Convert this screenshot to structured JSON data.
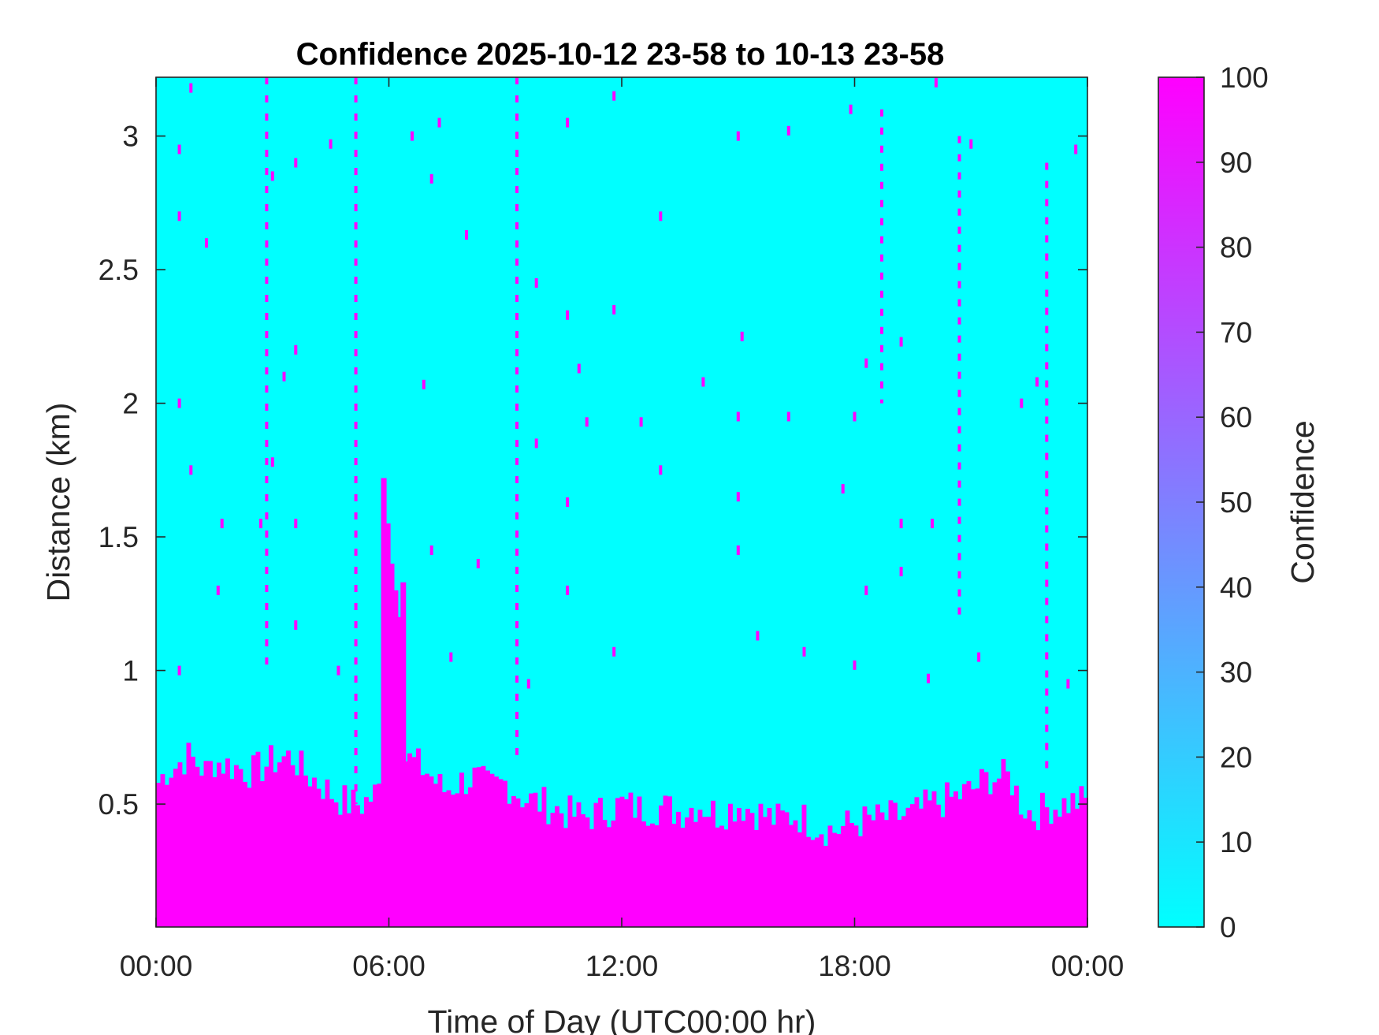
{
  "chart_data": {
    "type": "heatmap",
    "title": "Confidence 2025-10-12 23-58 to 10-13 23-58",
    "xlabel": "Time of Day (UTC00:00 hr)",
    "ylabel": "Distance (km)",
    "colorbar_label": "Confidence",
    "x_unit": "hours of day (UTC)",
    "xlim": [
      0,
      24
    ],
    "ylim": [
      0.04,
      3.22
    ],
    "x_ticks": [
      0,
      6,
      12,
      18,
      24
    ],
    "x_tick_labels": [
      "00:00",
      "06:00",
      "12:00",
      "18:00",
      "00:00"
    ],
    "y_ticks": [
      0.5,
      1,
      1.5,
      2,
      2.5,
      3
    ],
    "y_tick_labels": [
      "0.5",
      "1",
      "1.5",
      "2",
      "2.5",
      "3"
    ],
    "clim": [
      0,
      100
    ],
    "colorbar_ticks": [
      0,
      10,
      20,
      30,
      40,
      50,
      60,
      70,
      80,
      90,
      100
    ],
    "colorbar_tick_labels": [
      "0",
      "10",
      "20",
      "30",
      "40",
      "50",
      "60",
      "70",
      "80",
      "90",
      "100"
    ],
    "colormap": {
      "low": "#00ffff",
      "high": "#ff00ff"
    },
    "background_value": 0,
    "boundary_layer": {
      "description": "high-confidence (100) region from ground up to boundary height",
      "time_hr": [
        0.0,
        0.3,
        0.5,
        0.8,
        1.0,
        1.3,
        1.5,
        2.0,
        2.5,
        3.0,
        3.5,
        3.8,
        4.2,
        4.6,
        5.0,
        5.3,
        5.6,
        5.9,
        6.1,
        6.3,
        6.6,
        7.0,
        7.4,
        7.8,
        8.2,
        8.6,
        9.0,
        9.5,
        10.0,
        10.5,
        11.0,
        11.5,
        12.0,
        12.5,
        13.0,
        13.5,
        14.0,
        14.5,
        15.0,
        15.5,
        16.0,
        16.5,
        17.0,
        17.5,
        18.0,
        18.5,
        19.0,
        19.5,
        20.0,
        20.5,
        21.0,
        21.5,
        22.0,
        22.3,
        22.6,
        23.0,
        23.4,
        23.7,
        24.0
      ],
      "top_km": [
        0.57,
        0.63,
        0.64,
        0.68,
        0.66,
        0.62,
        0.66,
        0.64,
        0.62,
        0.66,
        0.68,
        0.62,
        0.58,
        0.53,
        0.5,
        0.5,
        0.53,
        0.58,
        0.45,
        0.68,
        0.66,
        0.62,
        0.55,
        0.58,
        0.6,
        0.56,
        0.58,
        0.52,
        0.5,
        0.47,
        0.45,
        0.47,
        0.5,
        0.48,
        0.49,
        0.47,
        0.5,
        0.46,
        0.5,
        0.47,
        0.44,
        0.46,
        0.42,
        0.4,
        0.43,
        0.44,
        0.45,
        0.46,
        0.5,
        0.52,
        0.55,
        0.6,
        0.6,
        0.5,
        0.46,
        0.49,
        0.5,
        0.51,
        0.51
      ]
    },
    "plume": {
      "description": "tall high-confidence plume near 06:00",
      "time_hr": [
        5.8,
        5.9,
        6.0,
        6.1,
        6.2,
        6.3
      ],
      "top_km": [
        1.72,
        1.55,
        1.4,
        1.3,
        1.2,
        1.33
      ]
    },
    "vertical_streaks": [
      {
        "time_hr": 5.15,
        "from_km": 0.5,
        "to_km": 3.22
      },
      {
        "time_hr": 9.3,
        "from_km": 0.65,
        "to_km": 3.22
      },
      {
        "time_hr": 2.85,
        "from_km": 1.0,
        "to_km": 3.22
      },
      {
        "time_hr": 18.7,
        "from_km": 2.0,
        "to_km": 3.1
      },
      {
        "time_hr": 20.7,
        "from_km": 1.2,
        "to_km": 3.0
      },
      {
        "time_hr": 22.95,
        "from_km": 0.6,
        "to_km": 2.9
      }
    ],
    "scattered_points": [
      {
        "time_hr": 0.6,
        "km": 2.95
      },
      {
        "time_hr": 0.9,
        "km": 3.18
      },
      {
        "time_hr": 0.6,
        "km": 2.7
      },
      {
        "time_hr": 1.3,
        "km": 2.6
      },
      {
        "time_hr": 0.6,
        "km": 2.0
      },
      {
        "time_hr": 0.9,
        "km": 1.75
      },
      {
        "time_hr": 1.7,
        "km": 1.55
      },
      {
        "time_hr": 1.6,
        "km": 1.3
      },
      {
        "time_hr": 0.6,
        "km": 1.0
      },
      {
        "time_hr": 3.0,
        "km": 2.85
      },
      {
        "time_hr": 3.6,
        "km": 2.9
      },
      {
        "time_hr": 3.6,
        "km": 2.2
      },
      {
        "time_hr": 3.3,
        "km": 2.1
      },
      {
        "time_hr": 3.0,
        "km": 1.78
      },
      {
        "time_hr": 3.6,
        "km": 1.55
      },
      {
        "time_hr": 4.5,
        "km": 2.97
      },
      {
        "time_hr": 3.6,
        "km": 1.17
      },
      {
        "time_hr": 6.6,
        "km": 3.0
      },
      {
        "time_hr": 7.1,
        "km": 2.84
      },
      {
        "time_hr": 7.3,
        "km": 3.05
      },
      {
        "time_hr": 8.0,
        "km": 2.63
      },
      {
        "time_hr": 6.9,
        "km": 2.07
      },
      {
        "time_hr": 7.1,
        "km": 1.45
      },
      {
        "time_hr": 8.3,
        "km": 1.4
      },
      {
        "time_hr": 7.6,
        "km": 1.05
      },
      {
        "time_hr": 10.6,
        "km": 3.05
      },
      {
        "time_hr": 9.8,
        "km": 2.45
      },
      {
        "time_hr": 10.6,
        "km": 2.33
      },
      {
        "time_hr": 10.9,
        "km": 2.13
      },
      {
        "time_hr": 11.8,
        "km": 2.35
      },
      {
        "time_hr": 11.1,
        "km": 1.93
      },
      {
        "time_hr": 9.8,
        "km": 1.85
      },
      {
        "time_hr": 10.6,
        "km": 1.63
      },
      {
        "time_hr": 10.6,
        "km": 1.3
      },
      {
        "time_hr": 11.8,
        "km": 1.07
      },
      {
        "time_hr": 9.6,
        "km": 0.95
      },
      {
        "time_hr": 11.8,
        "km": 3.15
      },
      {
        "time_hr": 13.0,
        "km": 2.7
      },
      {
        "time_hr": 12.5,
        "km": 1.93
      },
      {
        "time_hr": 13.0,
        "km": 1.75
      },
      {
        "time_hr": 14.1,
        "km": 2.08
      },
      {
        "time_hr": 15.0,
        "km": 3.0
      },
      {
        "time_hr": 15.1,
        "km": 2.25
      },
      {
        "time_hr": 15.0,
        "km": 1.95
      },
      {
        "time_hr": 15.0,
        "km": 1.65
      },
      {
        "time_hr": 15.0,
        "km": 1.45
      },
      {
        "time_hr": 15.5,
        "km": 1.13
      },
      {
        "time_hr": 16.3,
        "km": 3.02
      },
      {
        "time_hr": 16.3,
        "km": 1.95
      },
      {
        "time_hr": 16.7,
        "km": 1.07
      },
      {
        "time_hr": 17.9,
        "km": 3.1
      },
      {
        "time_hr": 18.3,
        "km": 2.15
      },
      {
        "time_hr": 18.0,
        "km": 1.95
      },
      {
        "time_hr": 17.7,
        "km": 1.68
      },
      {
        "time_hr": 18.3,
        "km": 1.3
      },
      {
        "time_hr": 18.0,
        "km": 1.02
      },
      {
        "time_hr": 19.2,
        "km": 2.23
      },
      {
        "time_hr": 19.2,
        "km": 1.55
      },
      {
        "time_hr": 19.2,
        "km": 1.37
      },
      {
        "time_hr": 20.0,
        "km": 1.55
      },
      {
        "time_hr": 19.9,
        "km": 0.97
      },
      {
        "time_hr": 21.2,
        "km": 1.05
      },
      {
        "time_hr": 21.0,
        "km": 2.97
      },
      {
        "time_hr": 20.1,
        "km": 3.2
      },
      {
        "time_hr": 22.3,
        "km": 2.0
      },
      {
        "time_hr": 22.7,
        "km": 2.08
      },
      {
        "time_hr": 23.7,
        "km": 2.95
      },
      {
        "time_hr": 23.5,
        "km": 0.95
      },
      {
        "time_hr": 4.7,
        "km": 1.0
      },
      {
        "time_hr": 2.7,
        "km": 1.55
      }
    ]
  }
}
